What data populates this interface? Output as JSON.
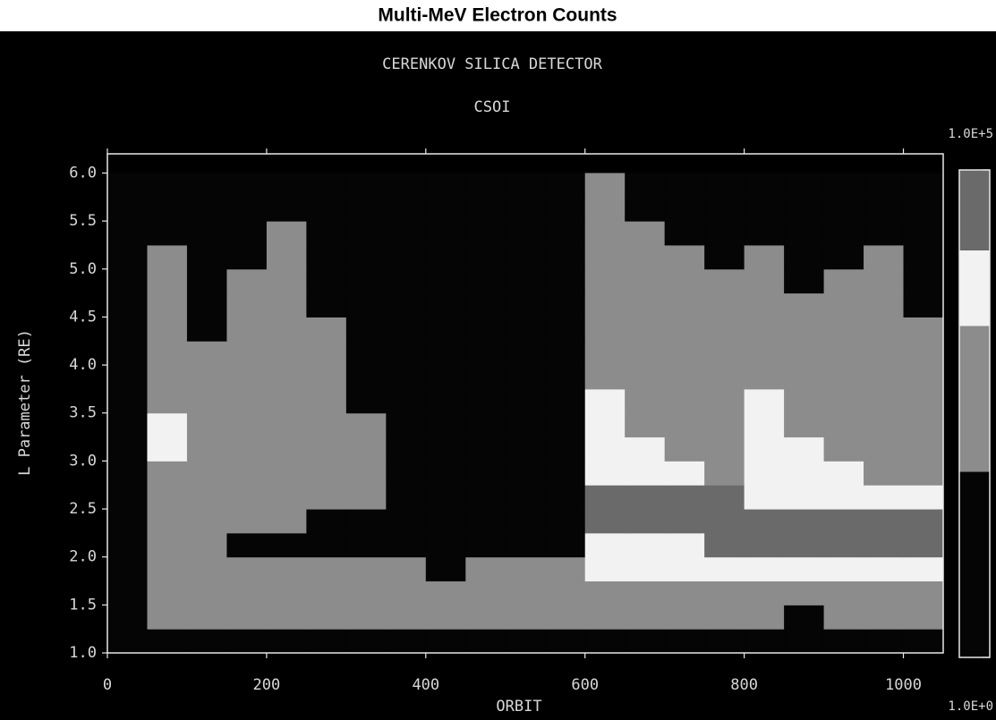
{
  "chart_data": {
    "type": "heatmap",
    "title": "Multi-MeV Electron Counts",
    "subtitle": "CERENKOV SILICA DETECTOR",
    "instrument": "CSOI",
    "x_label": "ORBIT",
    "y_label": "L Parameter (RE)",
    "xlim": [
      0,
      1050
    ],
    "ylim": [
      1.0,
      6.2
    ],
    "xticks": [
      0,
      200,
      400,
      600,
      800,
      1000
    ],
    "yticks": [
      {
        "value": 1,
        "label": "1.0"
      },
      1.5,
      {
        "value": 2,
        "label": "2.0"
      },
      2.5,
      {
        "value": 3,
        "label": "3.0"
      },
      3.5,
      {
        "value": 4,
        "label": "4.0"
      },
      4.5,
      {
        "value": 5,
        "label": "5.0"
      },
      5.5,
      {
        "value": 6,
        "label": "6.0"
      }
    ],
    "x_edges": [
      0,
      50,
      100,
      150,
      200,
      250,
      300,
      350,
      400,
      450,
      500,
      550,
      600,
      650,
      700,
      750,
      800,
      850,
      900,
      950,
      1000,
      1050
    ],
    "y_edges": [
      1.0,
      1.25,
      1.5,
      1.75,
      2.0,
      2.25,
      2.5,
      2.75,
      3.0,
      3.25,
      3.5,
      3.75,
      4.0,
      4.25,
      4.5,
      4.75,
      5.0,
      5.25,
      5.5,
      5.75,
      6.0
    ],
    "z": [
      [
        1,
        1,
        1,
        1,
        1,
        1,
        1,
        1,
        1,
        1,
        1,
        1,
        1,
        1,
        1,
        1,
        1,
        1,
        1,
        1,
        1
      ],
      [
        1,
        300,
        300,
        300,
        300,
        300,
        300,
        300,
        300,
        300,
        300,
        300,
        300,
        300,
        300,
        300,
        300,
        1,
        300,
        300,
        300
      ],
      [
        1,
        300,
        300,
        300,
        300,
        300,
        300,
        300,
        300,
        300,
        300,
        300,
        300,
        300,
        300,
        300,
        300,
        300,
        300,
        300,
        300
      ],
      [
        1,
        300,
        300,
        300,
        300,
        300,
        300,
        300,
        1,
        300,
        300,
        300,
        5000,
        5000,
        5000,
        5000,
        5000,
        5000,
        5000,
        5000,
        5000
      ],
      [
        1,
        300,
        300,
        1,
        1,
        1,
        1,
        1,
        1,
        1,
        1,
        1,
        5000,
        5000,
        5000,
        30000,
        30000,
        30000,
        30000,
        30000,
        30000
      ],
      [
        1,
        300,
        300,
        300,
        300,
        1,
        1,
        1,
        1,
        1,
        1,
        1,
        30000,
        30000,
        30000,
        30000,
        30000,
        30000,
        30000,
        30000,
        30000
      ],
      [
        1,
        300,
        300,
        300,
        300,
        300,
        300,
        1,
        1,
        1,
        1,
        1,
        30000,
        30000,
        30000,
        30000,
        5000,
        5000,
        5000,
        5000,
        5000
      ],
      [
        1,
        300,
        300,
        300,
        300,
        300,
        300,
        1,
        1,
        1,
        1,
        1,
        5000,
        5000,
        5000,
        300,
        5000,
        5000,
        5000,
        300,
        300
      ],
      [
        1,
        5000,
        300,
        300,
        300,
        300,
        300,
        1,
        1,
        1,
        1,
        1,
        5000,
        5000,
        300,
        300,
        5000,
        5000,
        300,
        300,
        300
      ],
      [
        1,
        5000,
        300,
        300,
        300,
        300,
        300,
        1,
        1,
        1,
        1,
        1,
        5000,
        300,
        300,
        300,
        5000,
        300,
        300,
        300,
        300
      ],
      [
        1,
        300,
        300,
        300,
        300,
        300,
        1,
        1,
        1,
        1,
        1,
        1,
        5000,
        300,
        300,
        300,
        5000,
        300,
        300,
        300,
        300
      ],
      [
        1,
        300,
        300,
        300,
        300,
        300,
        1,
        1,
        1,
        1,
        1,
        1,
        300,
        300,
        300,
        300,
        300,
        300,
        300,
        300,
        300
      ],
      [
        1,
        300,
        300,
        300,
        300,
        300,
        1,
        1,
        1,
        1,
        1,
        1,
        300,
        300,
        300,
        300,
        300,
        300,
        300,
        300,
        300
      ],
      [
        1,
        300,
        1,
        300,
        300,
        300,
        1,
        1,
        1,
        1,
        1,
        1,
        300,
        300,
        300,
        300,
        300,
        300,
        300,
        300,
        300
      ],
      [
        1,
        300,
        1,
        300,
        300,
        1,
        1,
        1,
        1,
        1,
        1,
        1,
        300,
        300,
        300,
        300,
        300,
        300,
        300,
        300,
        1
      ],
      [
        1,
        300,
        1,
        300,
        300,
        1,
        1,
        1,
        1,
        1,
        1,
        1,
        300,
        300,
        300,
        300,
        300,
        1,
        300,
        300,
        1
      ],
      [
        1,
        300,
        1,
        1,
        300,
        1,
        1,
        1,
        1,
        1,
        1,
        1,
        300,
        300,
        300,
        1,
        300,
        1,
        1,
        300,
        1
      ],
      [
        1,
        1,
        1,
        1,
        300,
        1,
        1,
        1,
        1,
        1,
        1,
        1,
        300,
        300,
        1,
        1,
        1,
        1,
        1,
        1,
        1
      ],
      [
        1,
        1,
        1,
        1,
        1,
        1,
        1,
        1,
        1,
        1,
        1,
        1,
        300,
        1,
        1,
        1,
        1,
        1,
        1,
        1,
        1
      ],
      [
        1,
        1,
        1,
        1,
        1,
        1,
        1,
        1,
        1,
        1,
        1,
        1,
        300,
        1,
        1,
        1,
        1,
        1,
        1,
        1,
        1
      ]
    ],
    "zlim": [
      1,
      100000
    ],
    "zticks": [
      {
        "value": 1,
        "label": "1.0E+0"
      },
      {
        "value": 100000,
        "label": "1.0E+5"
      }
    ],
    "z_log": true,
    "color_bounds": [
      80,
      2500,
      15000
    ],
    "colors": [
      "#050505",
      "#8c8c8c",
      "#f2f2f2",
      "#6a6a6a"
    ]
  }
}
